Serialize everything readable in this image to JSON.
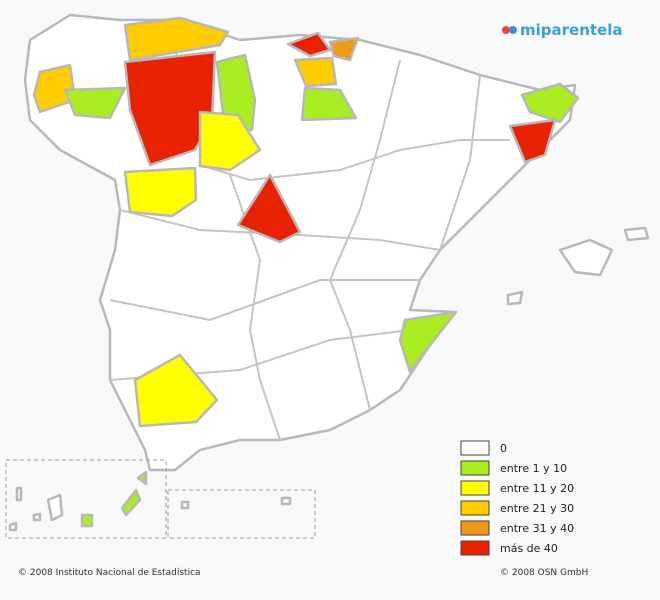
{
  "header": {
    "logo": "miparentela"
  },
  "legend": {
    "items": [
      {
        "label": "0",
        "color": "#ffffff"
      },
      {
        "label": "entre 1 y 10",
        "color": "#aaee22"
      },
      {
        "label": "entre 11 y 20",
        "color": "#ffff00"
      },
      {
        "label": "entre 21 y 30",
        "color": "#ffcc00"
      },
      {
        "label": "entre 31 y 40",
        "color": "#f09a1a"
      },
      {
        "label": "más de 40",
        "color": "#e82200"
      }
    ]
  },
  "footer": {
    "left": "© 2008 Instituto Nacional de Estadística",
    "right": "© 2008 OSN GmbH"
  }
}
